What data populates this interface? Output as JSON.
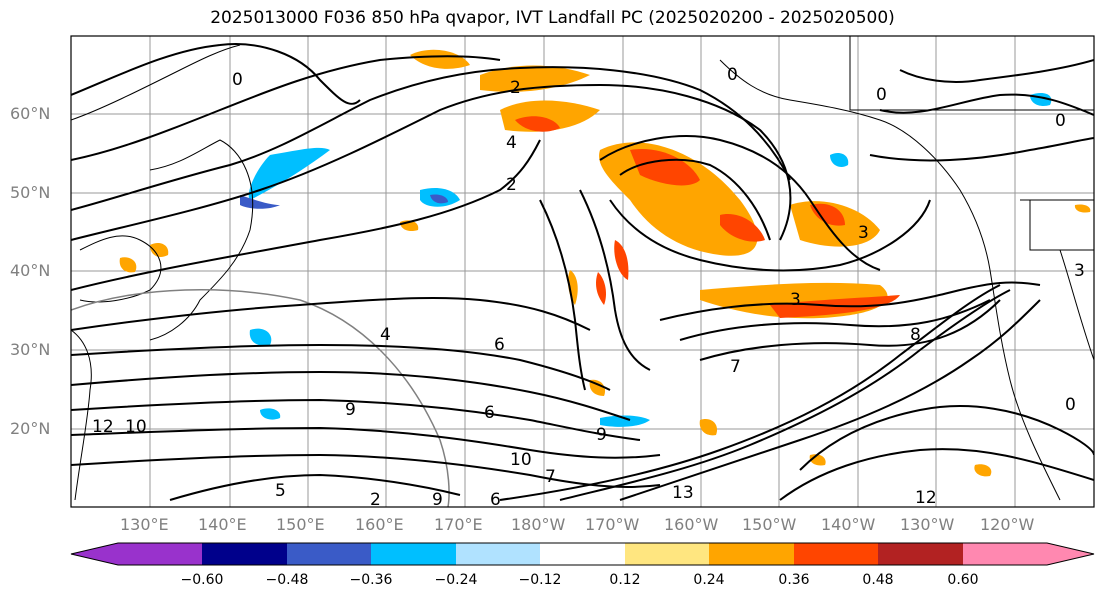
{
  "title": "2025013000 F036 850 hPa qvapor, IVT Landfall PC (2025020200 - 2025020500)",
  "lat_labels": [
    "60°N",
    "50°N",
    "40°N",
    "30°N",
    "20°N"
  ],
  "lon_labels": [
    "130°E",
    "140°E",
    "150°E",
    "160°E",
    "170°E",
    "180°W",
    "170°W",
    "160°W",
    "150°W",
    "140°W",
    "130°W",
    "120°W"
  ],
  "colorbar": {
    "ticks": [
      "−0.60",
      "−0.48",
      "−0.36",
      "−0.24",
      "−0.12",
      "0.12",
      "0.24",
      "0.36",
      "0.48",
      "0.60"
    ],
    "colors": [
      "#9932cc",
      "#00008b",
      "#3a5bc7",
      "#00bfff",
      "#b0e2ff",
      "#ffffff",
      "#ffe680",
      "#ffa500",
      "#ff4500",
      "#b22222",
      "#ff88b0"
    ]
  },
  "contour_labels": [
    "0",
    "0",
    "0",
    "0",
    "2",
    "4",
    "2",
    "3",
    "3",
    "3",
    "4",
    "6",
    "7",
    "8",
    "9",
    "9",
    "10",
    "10",
    "12",
    "13",
    "12",
    "6",
    "2",
    "5",
    "6",
    "7",
    "9",
    "0"
  ]
}
